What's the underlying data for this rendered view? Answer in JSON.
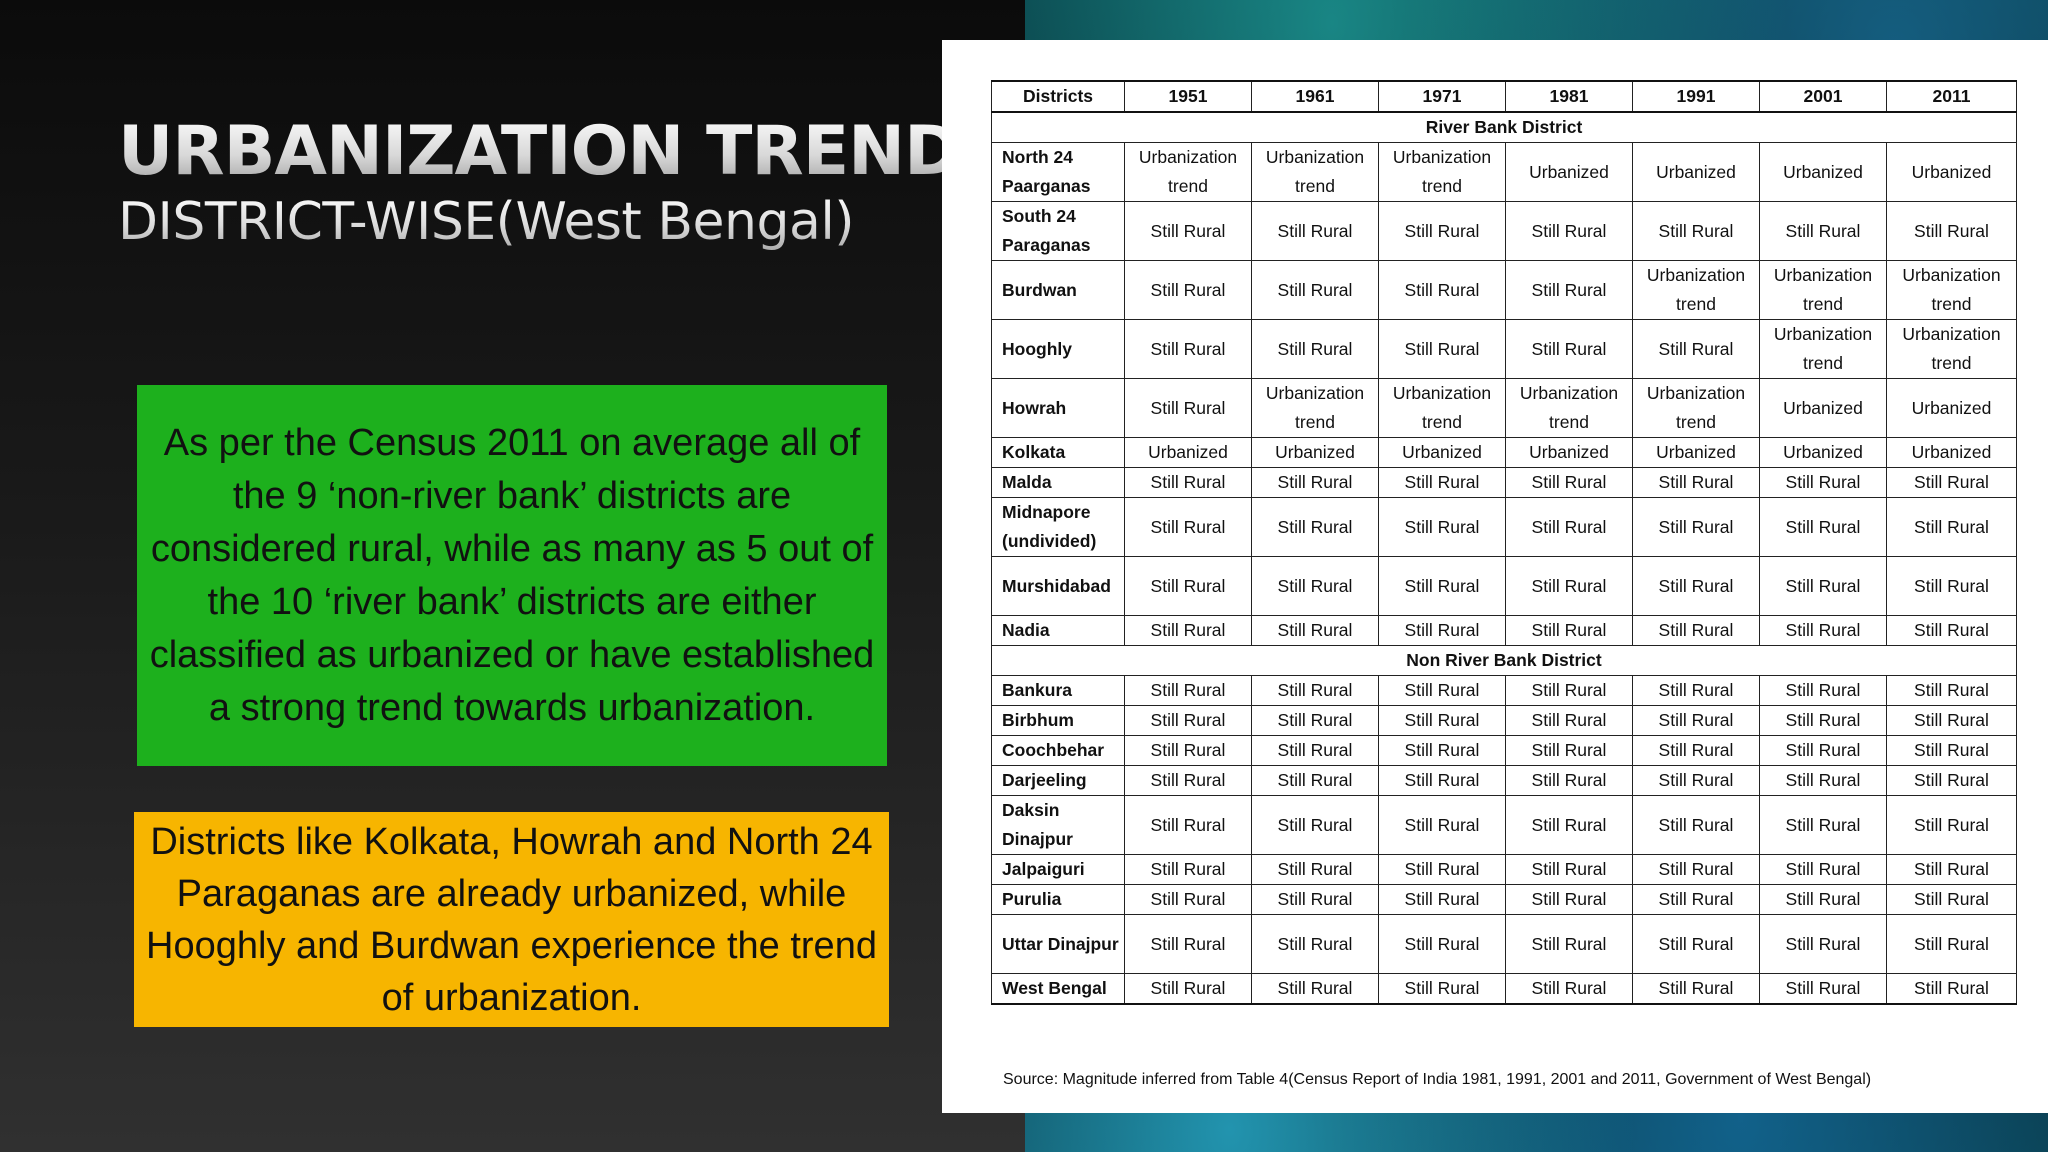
{
  "title": "URBANIZATION TREND",
  "subtitle": "DISTRICT-WISE(West Bengal)",
  "green_text": "As per the Census 2011 on average all of the 9 ‘non-river bank’ districts are considered rural, while as many as 5 out of the 10 ‘river bank’ districts are either classified as urbanized or have established a strong trend towards urbanization.",
  "yellow_text": "Districts like Kolkata, Howrah and North 24 Paraganas are already urbanized, while Hooghly and Burdwan experience the trend of urbanization.",
  "colors": {
    "green_box": "#1db01d",
    "yellow_box": "#f7b500"
  },
  "table": {
    "headers": [
      "Districts",
      "1951",
      "1961",
      "1971",
      "1981",
      "1991",
      "2001",
      "2011"
    ],
    "river_bank_label": "River Bank District",
    "river_bank_rows": [
      {
        "district": "North 24 Paarganas",
        "values": [
          "Urbanization trend",
          "Urbanization trend",
          "Urbanization trend",
          "Urbanized",
          "Urbanized",
          "Urbanized",
          "Urbanized"
        ]
      },
      {
        "district": "South 24 Paraganas",
        "values": [
          "Still Rural",
          "Still Rural",
          "Still Rural",
          "Still Rural",
          "Still Rural",
          "Still Rural",
          "Still Rural"
        ]
      },
      {
        "district": "Burdwan",
        "values": [
          "Still Rural",
          "Still Rural",
          "Still Rural",
          "Still Rural",
          "Urbanization trend",
          "Urbanization trend",
          "Urbanization trend"
        ]
      },
      {
        "district": "Hooghly",
        "values": [
          "Still Rural",
          "Still Rural",
          "Still Rural",
          "Still Rural",
          "Still Rural",
          "Urbanization trend",
          "Urbanization trend"
        ]
      },
      {
        "district": "Howrah",
        "values": [
          "Still Rural",
          "Urbanization trend",
          "Urbanization trend",
          "Urbanization trend",
          "Urbanization trend",
          "Urbanized",
          "Urbanized"
        ]
      },
      {
        "district": "Kolkata",
        "values": [
          "Urbanized",
          "Urbanized",
          "Urbanized",
          "Urbanized",
          "Urbanized",
          "Urbanized",
          "Urbanized"
        ]
      },
      {
        "district": "Malda",
        "values": [
          "Still Rural",
          "Still Rural",
          "Still Rural",
          "Still Rural",
          "Still Rural",
          "Still Rural",
          "Still Rural"
        ]
      },
      {
        "district": "Midnapore (undivided)",
        "values": [
          "Still Rural",
          "Still Rural",
          "Still Rural",
          "Still Rural",
          "Still Rural",
          "Still Rural",
          "Still Rural"
        ]
      },
      {
        "district": "Murshidabad",
        "values": [
          "Still Rural",
          "Still Rural",
          "Still Rural",
          "Still Rural",
          "Still Rural",
          "Still Rural",
          "Still Rural"
        ]
      },
      {
        "district": "Nadia",
        "values": [
          "Still Rural",
          "Still Rural",
          "Still Rural",
          "Still Rural",
          "Still Rural",
          "Still Rural",
          "Still Rural"
        ]
      }
    ],
    "non_river_bank_label": "Non River Bank District",
    "non_river_bank_rows": [
      {
        "district": "Bankura",
        "values": [
          "Still Rural",
          "Still Rural",
          "Still Rural",
          "Still Rural",
          "Still Rural",
          "Still Rural",
          "Still Rural"
        ]
      },
      {
        "district": "Birbhum",
        "values": [
          "Still Rural",
          "Still Rural",
          "Still Rural",
          "Still Rural",
          "Still Rural",
          "Still Rural",
          "Still Rural"
        ]
      },
      {
        "district": "Coochbehar",
        "values": [
          "Still Rural",
          "Still Rural",
          "Still Rural",
          "Still Rural",
          "Still Rural",
          "Still Rural",
          "Still Rural"
        ]
      },
      {
        "district": "Darjeeling",
        "values": [
          "Still Rural",
          "Still Rural",
          "Still Rural",
          "Still Rural",
          "Still Rural",
          "Still Rural",
          "Still Rural"
        ]
      },
      {
        "district": "Daksin Dinajpur",
        "values": [
          "Still Rural",
          "Still Rural",
          "Still Rural",
          "Still Rural",
          "Still Rural",
          "Still Rural",
          "Still Rural"
        ]
      },
      {
        "district": "Jalpaiguri",
        "values": [
          "Still Rural",
          "Still Rural",
          "Still Rural",
          "Still Rural",
          "Still Rural",
          "Still Rural",
          "Still Rural"
        ]
      },
      {
        "district": "Purulia",
        "values": [
          "Still Rural",
          "Still Rural",
          "Still Rural",
          "Still Rural",
          "Still Rural",
          "Still Rural",
          "Still Rural"
        ]
      },
      {
        "district": "Uttar Dinajpur",
        "values": [
          "Still Rural",
          "Still Rural",
          "Still Rural",
          "Still Rural",
          "Still Rural",
          "Still Rural",
          "Still Rural"
        ]
      },
      {
        "district": "West Bengal",
        "values": [
          "Still Rural",
          "Still Rural",
          "Still Rural",
          "Still Rural",
          "Still Rural",
          "Still Rural",
          "Still Rural"
        ]
      }
    ],
    "source": "Source: Magnitude inferred from Table 4(Census Report of India 1981, 1991, 2001 and 2011, Government of West Bengal)"
  }
}
